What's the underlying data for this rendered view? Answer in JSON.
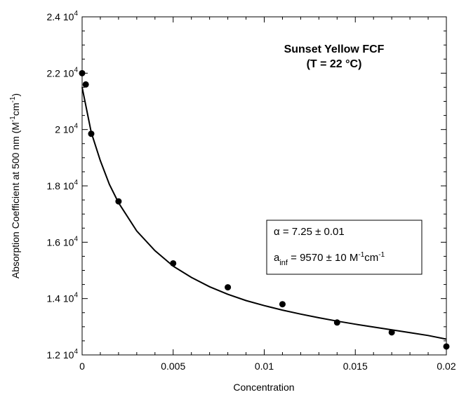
{
  "chart_data": {
    "type": "scatter",
    "title": "Sunset Yellow FCF",
    "subtitle": "(T = 22 °C)",
    "xlabel": "Concentration",
    "ylabel": "Absorption Coefficient at 500 nm  (M",
    "ylabel_parts": [
      "Absorption Coefficient at 500 nm  (M",
      "-1",
      "cm",
      "-1",
      ")"
    ],
    "xlim": [
      0,
      0.02
    ],
    "ylim": [
      12000,
      24000
    ],
    "x_ticks": [
      0,
      0.005,
      0.01,
      0.015,
      0.02
    ],
    "x_tick_labels": [
      "0",
      "0.005",
      "0.01",
      "0.015",
      "0.02"
    ],
    "y_ticks": [
      12000,
      14000,
      16000,
      18000,
      20000,
      22000,
      24000
    ],
    "y_tick_labels": [
      {
        "mantissa": "1.2 10",
        "exp": "4"
      },
      {
        "mantissa": "1.4 10",
        "exp": "4"
      },
      {
        "mantissa": "1.6 10",
        "exp": "4"
      },
      {
        "mantissa": "1.8 10",
        "exp": "4"
      },
      {
        "mantissa": "2 10",
        "exp": "4"
      },
      {
        "mantissa": "2.2 10",
        "exp": "4"
      },
      {
        "mantissa": "2.4 10",
        "exp": "4"
      }
    ],
    "grid": false,
    "series": [
      {
        "kind": "points",
        "x": [
          0,
          0.0002,
          0.0005,
          0.002,
          0.005,
          0.008,
          0.011,
          0.014,
          0.017,
          0.02
        ],
        "y": [
          22000,
          21600,
          19850,
          17450,
          15250,
          14400,
          13800,
          13150,
          12800,
          12300
        ]
      },
      {
        "kind": "fit-line",
        "x": [
          0,
          0.0005,
          0.001,
          0.0015,
          0.002,
          0.003,
          0.004,
          0.005,
          0.006,
          0.007,
          0.008,
          0.009,
          0.01,
          0.011,
          0.012,
          0.013,
          0.014,
          0.015,
          0.016,
          0.017,
          0.018,
          0.019,
          0.02
        ],
        "y": [
          21500,
          19900,
          18900,
          18050,
          17400,
          16400,
          15700,
          15150,
          14750,
          14420,
          14150,
          13930,
          13750,
          13590,
          13450,
          13320,
          13200,
          13090,
          12990,
          12890,
          12790,
          12690,
          12560
        ]
      }
    ],
    "annotation": {
      "alpha_label": "α = 7.25 ± 0.01",
      "ainf_parts": [
        "a",
        "inf",
        " = 9570 ± 10 M",
        "-1",
        "cm",
        "-1"
      ]
    }
  }
}
